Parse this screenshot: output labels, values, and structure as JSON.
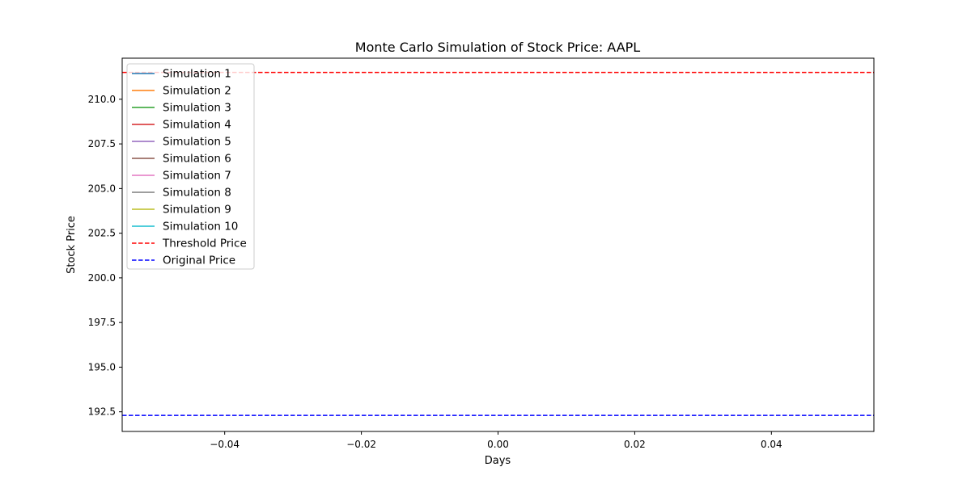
{
  "chart_data": {
    "type": "line",
    "title": "Monte Carlo Simulation of Stock Price: AAPL",
    "xlabel": "Days",
    "ylabel": "Stock Price",
    "xlim": [
      -0.055,
      0.055
    ],
    "ylim": [
      191.4,
      212.3
    ],
    "x_ticks": [
      -0.04,
      -0.02,
      0.0,
      0.02,
      0.04
    ],
    "x_tick_labels": [
      "−0.04",
      "−0.02",
      "0.00",
      "0.02",
      "0.04"
    ],
    "y_ticks": [
      192.5,
      195.0,
      197.5,
      200.0,
      202.5,
      205.0,
      207.5,
      210.0
    ],
    "y_tick_labels": [
      "192.5",
      "195.0",
      "197.5",
      "200.0",
      "202.5",
      "205.0",
      "207.5",
      "210.0"
    ],
    "grid": false,
    "legend_position": "upper-left",
    "series": [
      {
        "name": "Simulation 1",
        "color": "#1f77b4",
        "style": "solid",
        "x": [
          0
        ],
        "y": [
          192.3
        ]
      },
      {
        "name": "Simulation 2",
        "color": "#ff7f0e",
        "style": "solid",
        "x": [
          0
        ],
        "y": [
          192.3
        ]
      },
      {
        "name": "Simulation 3",
        "color": "#2ca02c",
        "style": "solid",
        "x": [
          0
        ],
        "y": [
          192.3
        ]
      },
      {
        "name": "Simulation 4",
        "color": "#d62728",
        "style": "solid",
        "x": [
          0
        ],
        "y": [
          192.3
        ]
      },
      {
        "name": "Simulation 5",
        "color": "#9467bd",
        "style": "solid",
        "x": [
          0
        ],
        "y": [
          192.3
        ]
      },
      {
        "name": "Simulation 6",
        "color": "#8c564b",
        "style": "solid",
        "x": [
          0
        ],
        "y": [
          192.3
        ]
      },
      {
        "name": "Simulation 7",
        "color": "#e377c2",
        "style": "solid",
        "x": [
          0
        ],
        "y": [
          192.3
        ]
      },
      {
        "name": "Simulation 8",
        "color": "#7f7f7f",
        "style": "solid",
        "x": [
          0
        ],
        "y": [
          192.3
        ]
      },
      {
        "name": "Simulation 9",
        "color": "#bcbd22",
        "style": "solid",
        "x": [
          0
        ],
        "y": [
          192.3
        ]
      },
      {
        "name": "Simulation 10",
        "color": "#17becf",
        "style": "solid",
        "x": [
          0
        ],
        "y": [
          192.3
        ]
      }
    ],
    "hlines": [
      {
        "name": "Threshold Price",
        "y": 211.5,
        "color": "#ff0000",
        "style": "dashed"
      },
      {
        "name": "Original Price",
        "y": 192.3,
        "color": "#0000ff",
        "style": "dashed"
      }
    ]
  }
}
